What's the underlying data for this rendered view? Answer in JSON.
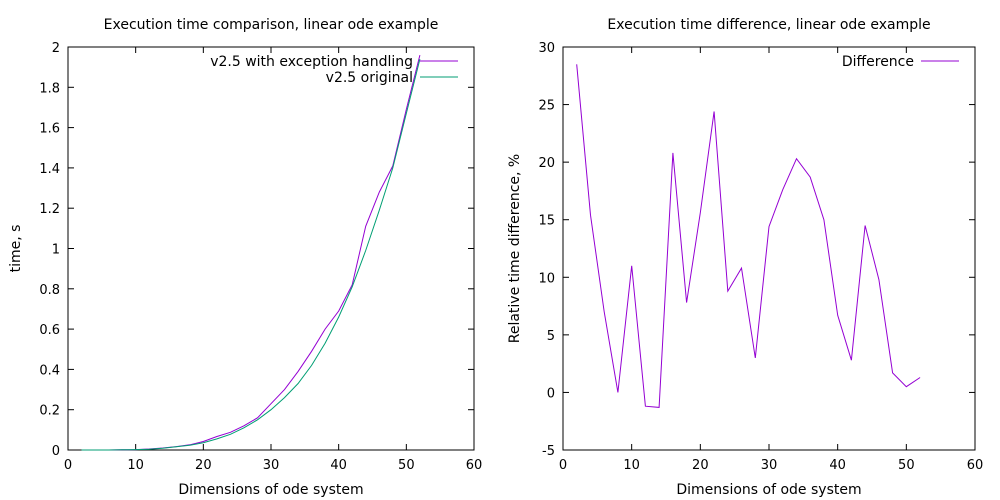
{
  "chart_data": [
    {
      "type": "line",
      "title": "Execution time comparison, linear ode example",
      "xlabel": "Dimensions of ode system",
      "ylabel": "time, s",
      "xlim": [
        0,
        60
      ],
      "ylim": [
        0,
        2
      ],
      "xticks": [
        0,
        10,
        20,
        30,
        40,
        50,
        60
      ],
      "yticks": [
        0,
        0.2,
        0.4,
        0.6,
        0.8,
        1,
        1.2,
        1.4,
        1.6,
        1.8,
        2
      ],
      "grid": false,
      "legend_position": "top-right",
      "series": [
        {
          "name": "v2.5 with exception handling",
          "color": "#9400d3",
          "x": [
            2,
            4,
            6,
            8,
            10,
            12,
            14,
            16,
            18,
            20,
            22,
            24,
            26,
            28,
            30,
            32,
            34,
            36,
            38,
            40,
            42,
            44,
            46,
            48,
            50,
            52
          ],
          "y": [
            0.0,
            0.0,
            0.0,
            0.001,
            0.002,
            0.005,
            0.01,
            0.017,
            0.026,
            0.042,
            0.067,
            0.088,
            0.12,
            0.16,
            0.23,
            0.3,
            0.39,
            0.49,
            0.6,
            0.69,
            0.82,
            1.11,
            1.28,
            1.41,
            1.69,
            1.96
          ]
        },
        {
          "name": "v2.5 original",
          "color": "#009e73",
          "x": [
            2,
            4,
            6,
            8,
            10,
            12,
            14,
            16,
            18,
            20,
            22,
            24,
            26,
            28,
            30,
            32,
            34,
            36,
            38,
            40,
            42,
            44,
            46,
            48,
            50,
            52
          ],
          "y": [
            0.0,
            0.0,
            0.0,
            0.001,
            0.002,
            0.004,
            0.009,
            0.016,
            0.024,
            0.036,
            0.055,
            0.078,
            0.11,
            0.15,
            0.2,
            0.26,
            0.33,
            0.42,
            0.53,
            0.66,
            0.81,
            0.99,
            1.19,
            1.4,
            1.67,
            1.94
          ]
        }
      ]
    },
    {
      "type": "line",
      "title": "Execution time difference, linear ode example",
      "xlabel": "Dimensions of ode system",
      "ylabel": "Relative time difference, %",
      "xlim": [
        0,
        60
      ],
      "ylim": [
        -5,
        30
      ],
      "xticks": [
        0,
        10,
        20,
        30,
        40,
        50,
        60
      ],
      "yticks": [
        -5,
        0,
        5,
        10,
        15,
        20,
        25,
        30
      ],
      "grid": false,
      "legend_position": "top-right",
      "series": [
        {
          "name": "Difference",
          "color": "#9400d3",
          "x": [
            2,
            4,
            6,
            8,
            10,
            12,
            14,
            16,
            18,
            20,
            22,
            24,
            26,
            28,
            30,
            32,
            34,
            36,
            38,
            40,
            42,
            44,
            46,
            48,
            50,
            52
          ],
          "y": [
            28.5,
            15.4,
            7.0,
            0.0,
            11.0,
            -1.2,
            -1.3,
            20.8,
            7.8,
            15.6,
            24.4,
            8.8,
            10.8,
            3.0,
            14.4,
            17.6,
            20.3,
            18.7,
            15.0,
            6.7,
            2.8,
            14.5,
            9.8,
            1.7,
            0.5,
            1.3
          ]
        }
      ]
    }
  ]
}
